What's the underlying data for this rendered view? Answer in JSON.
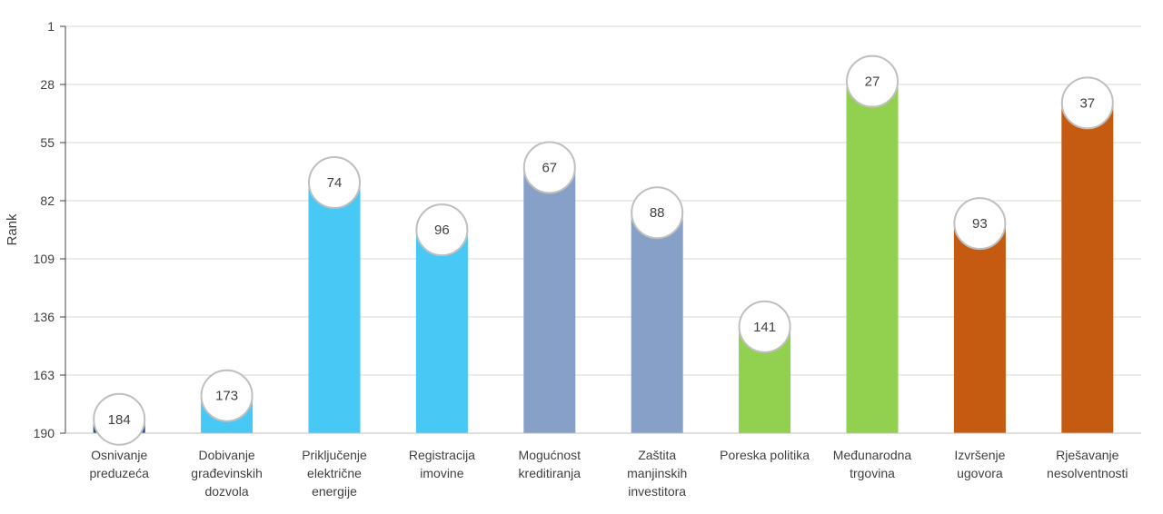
{
  "chart_data": {
    "type": "bar",
    "ylabel": "Rank",
    "xlabel": "",
    "y_inverted": true,
    "ylim": [
      1,
      190
    ],
    "yticks": [
      1,
      28,
      55,
      82,
      109,
      136,
      163,
      190
    ],
    "grid": true,
    "legend": "none",
    "categories": [
      [
        "Osnivanje",
        "preduzeća"
      ],
      [
        "Dobivanje",
        "građevinskih",
        "dozvola"
      ],
      [
        "Priključenje",
        "električne",
        "energije"
      ],
      [
        "Registracija",
        "imovine"
      ],
      [
        "Mogućnost",
        "kreditiranja"
      ],
      [
        "Zaštita",
        "manjinskih",
        "investitora"
      ],
      [
        "Poreska politika"
      ],
      [
        "Međunarodna",
        "trgovina"
      ],
      [
        "Izvršenje",
        "ugovora"
      ],
      [
        "Rješavanje",
        "nesolventnosti"
      ]
    ],
    "values": [
      184,
      173,
      74,
      96,
      67,
      88,
      141,
      27,
      93,
      37
    ],
    "colors": [
      "#1f4e8c",
      "#47c8f5",
      "#47c8f5",
      "#47c8f5",
      "#87a0c8",
      "#87a0c8",
      "#92d050",
      "#92d050",
      "#c55a11",
      "#c55a11"
    ]
  }
}
